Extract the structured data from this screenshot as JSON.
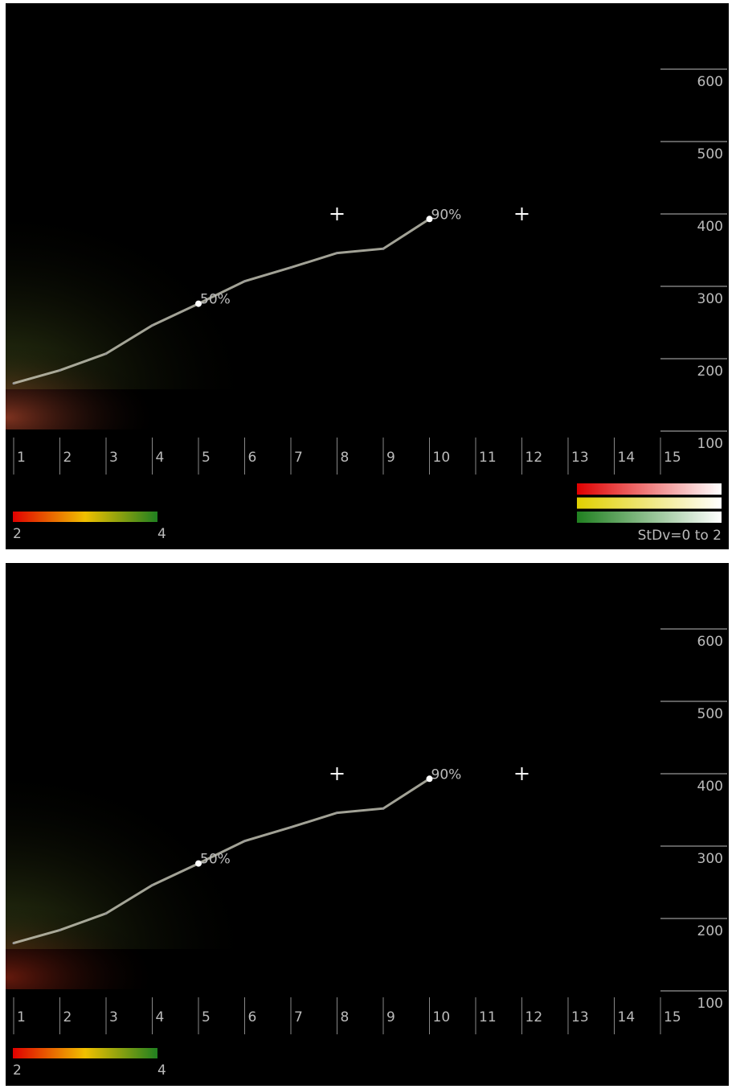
{
  "chart_data": [
    {
      "type": "line",
      "x": [
        1,
        2,
        3,
        4,
        5,
        6,
        7,
        8,
        9,
        10,
        11,
        12,
        13,
        14,
        15
      ],
      "xlim": [
        1,
        15
      ],
      "xticks": [
        1,
        2,
        3,
        4,
        5,
        6,
        7,
        8,
        9,
        10,
        11,
        12,
        13,
        14,
        15
      ],
      "values": [
        166,
        184,
        207,
        246,
        276,
        307,
        326,
        346,
        352,
        393,
        null,
        null,
        null,
        null,
        null
      ],
      "point_labels": [
        null,
        null,
        null,
        null,
        "50%",
        null,
        null,
        null,
        null,
        "90%",
        null,
        null,
        null,
        null,
        null
      ],
      "color": "#d8d8c8",
      "ylim": [
        100,
        600
      ],
      "yticks": [
        100,
        200,
        300,
        400,
        500,
        600
      ],
      "markers": [
        {
          "x": 8,
          "y": 400
        },
        {
          "x": 12,
          "y": 400
        }
      ],
      "color_scale": {
        "min": 2,
        "max": 4,
        "colors": [
          "#e00000",
          "#f0c000",
          "#208020"
        ]
      },
      "stdv_legend": {
        "label": "StDv=0 to 2",
        "colors": [
          "#e00000",
          "#e0d000",
          "#208020"
        ]
      }
    },
    {
      "type": "line",
      "x": [
        1,
        2,
        3,
        4,
        5,
        6,
        7,
        8,
        9,
        10,
        11,
        12,
        13,
        14,
        15
      ],
      "xlim": [
        1,
        15
      ],
      "xticks": [
        1,
        2,
        3,
        4,
        5,
        6,
        7,
        8,
        9,
        10,
        11,
        12,
        13,
        14,
        15
      ],
      "values": [
        166,
        184,
        207,
        246,
        276,
        307,
        326,
        346,
        352,
        393,
        null,
        null,
        null,
        null,
        null
      ],
      "point_labels": [
        null,
        null,
        null,
        null,
        "50%",
        null,
        null,
        null,
        null,
        "90%",
        null,
        null,
        null,
        null,
        null
      ],
      "color": "#d8d8c8",
      "ylim": [
        100,
        600
      ],
      "yticks": [
        100,
        200,
        300,
        400,
        500,
        600
      ],
      "markers": [
        {
          "x": 8,
          "y": 400
        },
        {
          "x": 12,
          "y": 400
        }
      ],
      "color_scale": {
        "min": 2,
        "max": 4,
        "colors": [
          "#e00000",
          "#f0c000",
          "#208020"
        ]
      }
    }
  ]
}
